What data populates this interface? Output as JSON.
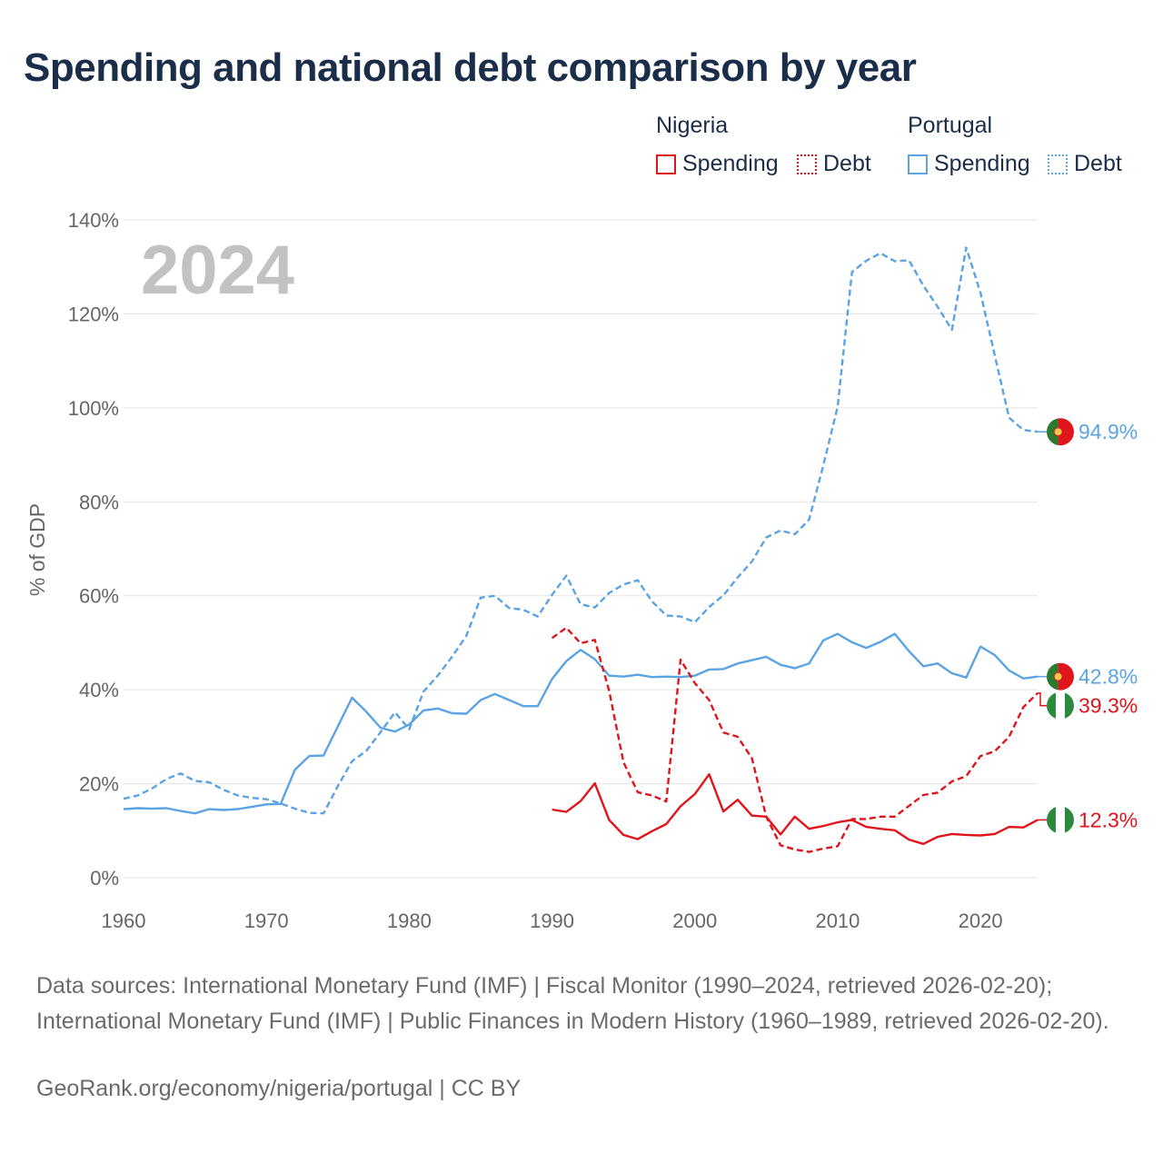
{
  "title": "Spending and national debt comparison by year",
  "legend": {
    "groups": [
      {
        "country": "Nigeria",
        "color": "#e0141b",
        "items": [
          {
            "label": "Spending",
            "style": "solid"
          },
          {
            "label": "Debt",
            "style": "dotted"
          }
        ]
      },
      {
        "country": "Portugal",
        "color": "#5ba3e3",
        "items": [
          {
            "label": "Spending",
            "style": "solid"
          },
          {
            "label": "Debt",
            "style": "dotted"
          }
        ]
      }
    ]
  },
  "chart_data": {
    "type": "line",
    "title": "Spending and national debt comparison by year",
    "year_overlay": "2024",
    "ylabel": "% of GDP",
    "xlabel": "",
    "xlim": [
      1960,
      2024
    ],
    "ylim": [
      0,
      140
    ],
    "x_ticks": [
      1960,
      1970,
      1980,
      1990,
      2000,
      2010,
      2020
    ],
    "y_ticks": [
      0,
      20,
      40,
      60,
      80,
      100,
      120,
      140
    ],
    "y_tick_labels": [
      "0%",
      "20%",
      "40%",
      "60%",
      "80%",
      "100%",
      "120%",
      "140%"
    ],
    "grid": true,
    "series": [
      {
        "name": "Portugal Debt",
        "country": "Portugal",
        "measure": "Debt",
        "color": "#5ba3e3",
        "dash": "dashed",
        "end_label": "94.9%",
        "flag": "portugal",
        "x": [
          1960,
          1961,
          1962,
          1963,
          1964,
          1965,
          1966,
          1967,
          1968,
          1969,
          1970,
          1971,
          1972,
          1973,
          1974,
          1975,
          1976,
          1977,
          1978,
          1979,
          1980,
          1981,
          1982,
          1983,
          1984,
          1985,
          1986,
          1987,
          1988,
          1989,
          1990,
          1991,
          1992,
          1993,
          1994,
          1995,
          1996,
          1997,
          1998,
          1999,
          2000,
          2001,
          2002,
          2003,
          2004,
          2005,
          2006,
          2007,
          2008,
          2009,
          2010,
          2011,
          2012,
          2013,
          2014,
          2015,
          2016,
          2017,
          2018,
          2019,
          2020,
          2021,
          2022,
          2023,
          2024
        ],
        "values": [
          16.8,
          17.5,
          19,
          21,
          22.2,
          20.6,
          20.3,
          18.7,
          17.5,
          17,
          16.7,
          15.8,
          14.7,
          13.8,
          13.7,
          19.5,
          24.8,
          27,
          31,
          35.2,
          31.6,
          39.6,
          43,
          47,
          51.5,
          59.6,
          60,
          57.4,
          57,
          55.6,
          60.2,
          64.3,
          58.2,
          57.5,
          60.6,
          62.4,
          63.3,
          58.8,
          55.8,
          55.6,
          54.4,
          57.6,
          60.1,
          63.9,
          67.3,
          72.4,
          73.9,
          73.1,
          76.2,
          87.8,
          100.2,
          128.9,
          131.3,
          132.9,
          131.2,
          131.4,
          126,
          121.5,
          116.6,
          134.1,
          124.5,
          111.2,
          97.9,
          95.3,
          94.9
        ]
      },
      {
        "name": "Portugal Spending",
        "country": "Portugal",
        "measure": "Spending",
        "color": "#5ba3e3",
        "dash": "solid",
        "end_label": "42.8%",
        "flag": "portugal",
        "x": [
          1960,
          1961,
          1962,
          1963,
          1964,
          1965,
          1966,
          1967,
          1968,
          1969,
          1970,
          1971,
          1972,
          1973,
          1974,
          1975,
          1976,
          1977,
          1978,
          1979,
          1980,
          1981,
          1982,
          1983,
          1984,
          1985,
          1986,
          1987,
          1988,
          1989,
          1990,
          1991,
          1992,
          1993,
          1994,
          1995,
          1996,
          1997,
          1998,
          1999,
          2000,
          2001,
          2002,
          2003,
          2004,
          2005,
          2006,
          2007,
          2008,
          2009,
          2010,
          2011,
          2012,
          2013,
          2014,
          2015,
          2016,
          2017,
          2018,
          2019,
          2020,
          2021,
          2022,
          2023,
          2024
        ],
        "values": [
          14.6,
          14.8,
          14.7,
          14.8,
          14.2,
          13.7,
          14.6,
          14.4,
          14.6,
          15.1,
          15.6,
          15.7,
          23,
          25.9,
          26,
          32.2,
          38.3,
          35.3,
          31.9,
          31.1,
          32.6,
          35.6,
          36,
          35,
          34.9,
          37.8,
          39.1,
          37.8,
          36.5,
          36.5,
          42.3,
          46.1,
          48.5,
          46.5,
          43,
          42.8,
          43.2,
          42.7,
          42.8,
          42.7,
          43,
          44.3,
          44.4,
          45.6,
          46.3,
          47,
          45.3,
          44.6,
          45.6,
          50.5,
          51.9,
          50.1,
          48.9,
          50.2,
          51.9,
          48.2,
          45,
          45.6,
          43.5,
          42.6,
          49.2,
          47.4,
          44.1,
          42.4,
          42.8
        ]
      },
      {
        "name": "Nigeria Debt",
        "country": "Nigeria",
        "measure": "Debt",
        "color": "#e0141b",
        "dash": "dashed",
        "end_label": "39.3%",
        "flag": "nigeria",
        "x": [
          1990,
          1991,
          1992,
          1993,
          1994,
          1995,
          1996,
          1997,
          1998,
          1999,
          2000,
          2001,
          2002,
          2003,
          2004,
          2005,
          2006,
          2007,
          2008,
          2009,
          2010,
          2011,
          2012,
          2013,
          2014,
          2015,
          2016,
          2017,
          2018,
          2019,
          2020,
          2021,
          2022,
          2023,
          2024
        ],
        "values": [
          51,
          53.2,
          49.9,
          50.6,
          39.8,
          24.6,
          18.2,
          17.5,
          16.2,
          46.4,
          41.4,
          37.8,
          30.9,
          30,
          25.4,
          13,
          6.9,
          6,
          5.5,
          6.2,
          6.7,
          12.5,
          12.5,
          13,
          13,
          15.3,
          17.6,
          18.1,
          20.5,
          21.6,
          25.9,
          26.9,
          30,
          36.3,
          39.3
        ]
      },
      {
        "name": "Nigeria Spending",
        "country": "Nigeria",
        "measure": "Spending",
        "color": "#e0141b",
        "dash": "solid",
        "end_label": "12.3%",
        "flag": "nigeria",
        "x": [
          1990,
          1991,
          1992,
          1993,
          1994,
          1995,
          1996,
          1997,
          1998,
          1999,
          2000,
          2001,
          2002,
          2003,
          2004,
          2005,
          2006,
          2007,
          2008,
          2009,
          2010,
          2011,
          2012,
          2013,
          2014,
          2015,
          2016,
          2017,
          2018,
          2019,
          2020,
          2021,
          2022,
          2023,
          2024
        ],
        "values": [
          14.5,
          14,
          16.3,
          20.1,
          12.3,
          9.1,
          8.2,
          9.9,
          11.4,
          15.2,
          17.8,
          22,
          14.1,
          16.6,
          13.2,
          13,
          9.2,
          13,
          10.4,
          11,
          11.8,
          12.3,
          10.8,
          10.4,
          10.1,
          8.1,
          7.2,
          8.7,
          9.3,
          9.1,
          9,
          9.3,
          10.8,
          10.7,
          12.3
        ]
      }
    ]
  },
  "sources": "Data sources: International Monetary Fund (IMF) | Fiscal Monitor (1990–2024, retrieved 2026-02-20); International Monetary Fund (IMF) | Public Finances in Modern History (1960–1989, retrieved 2026-02-20).",
  "footer": "GeoRank.org/economy/nigeria/portugal | CC BY"
}
